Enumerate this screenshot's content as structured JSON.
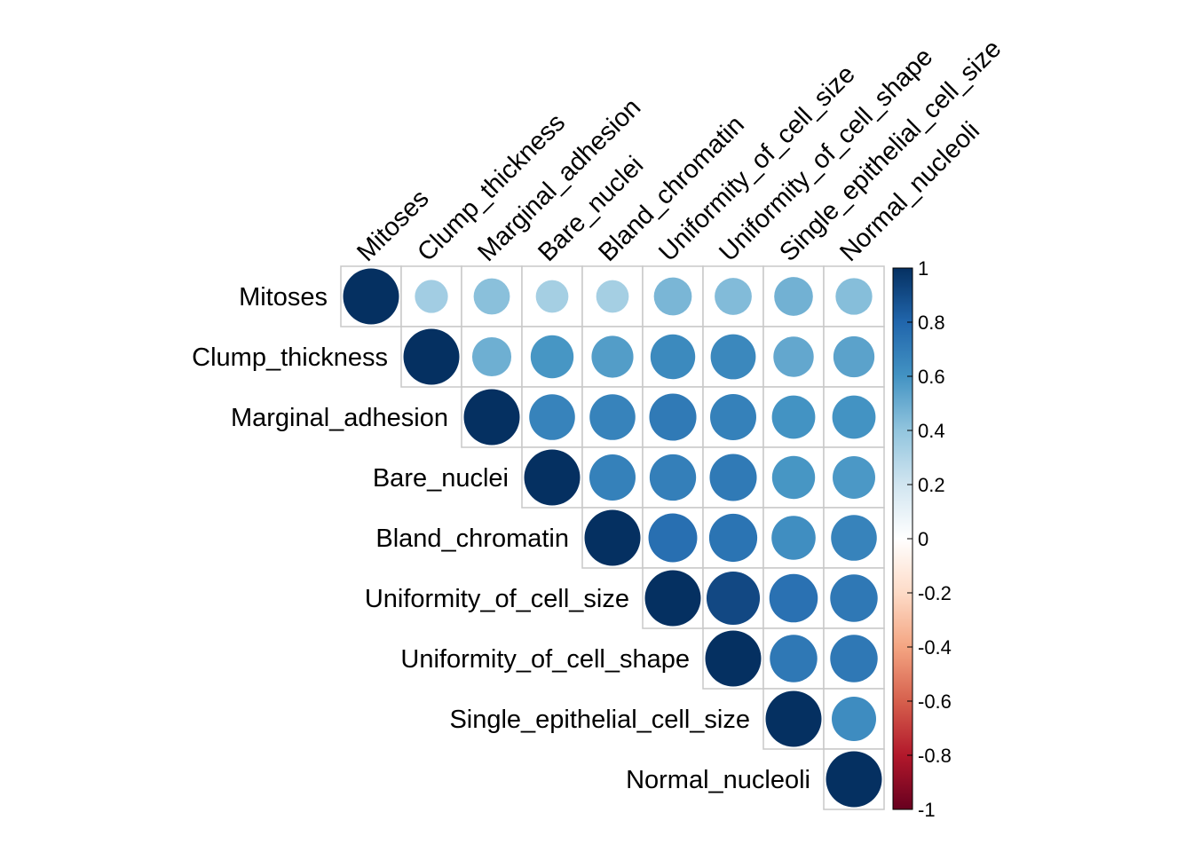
{
  "chart_data": {
    "type": "heatmap",
    "variables": [
      "Mitoses",
      "Clump_thickness",
      "Marginal_adhesion",
      "Bare_nuclei",
      "Bland_chromatin",
      "Uniformity_of_cell_size",
      "Uniformity_of_cell_shape",
      "Single_epithelial_cell_size",
      "Normal_nucleoli"
    ],
    "layout": "upper-triangle",
    "matrix": [
      [
        1.0,
        0.35,
        0.42,
        0.34,
        0.34,
        0.46,
        0.44,
        0.48,
        0.43
      ],
      [
        null,
        1.0,
        0.49,
        0.59,
        0.56,
        0.64,
        0.65,
        0.52,
        0.54
      ],
      [
        null,
        null,
        1.0,
        0.67,
        0.67,
        0.71,
        0.68,
        0.6,
        0.6
      ],
      [
        null,
        null,
        null,
        1.0,
        0.68,
        0.69,
        0.71,
        0.59,
        0.58
      ],
      [
        null,
        null,
        null,
        null,
        1.0,
        0.76,
        0.74,
        0.62,
        0.67
      ],
      [
        null,
        null,
        null,
        null,
        null,
        1.0,
        0.91,
        0.75,
        0.72
      ],
      [
        null,
        null,
        null,
        null,
        null,
        null,
        1.0,
        0.72,
        0.72
      ],
      [
        null,
        null,
        null,
        null,
        null,
        null,
        null,
        1.0,
        0.63
      ],
      [
        null,
        null,
        null,
        null,
        null,
        null,
        null,
        null,
        1.0
      ]
    ],
    "colorbar": {
      "ticks": [
        "1",
        "0.8",
        "0.6",
        "0.4",
        "0.2",
        "0",
        "-0.2",
        "-0.4",
        "-0.6",
        "-0.8",
        "-1"
      ],
      "range": [
        -1,
        1
      ],
      "colors": [
        "#67001F",
        "#B2182B",
        "#D6604D",
        "#F4A582",
        "#FDDBC7",
        "#FFFFFF",
        "#D1E5F0",
        "#92C5DE",
        "#4393C3",
        "#2166AC",
        "#053061"
      ]
    },
    "legend": "right",
    "grid": true
  }
}
